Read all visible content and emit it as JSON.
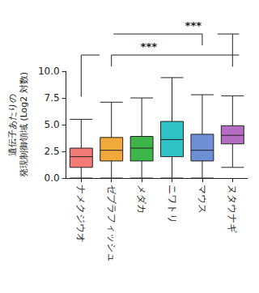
{
  "chart_data": {
    "type": "boxplot",
    "y_label": "遺伝子あたりの\n発現制御領域 (Log2 対数)",
    "categories": [
      "ナメクジウオ",
      "ゼブラフィッシュ",
      "メダカ",
      "ニワトリ",
      "マウス",
      "ヌタウナギ"
    ],
    "series": [
      {
        "min": [
          0,
          0,
          0,
          0,
          0,
          1.0
        ],
        "q1": [
          1.0,
          1.6,
          1.6,
          2.0,
          1.6,
          3.2
        ],
        "median": [
          2.0,
          2.6,
          2.8,
          3.6,
          2.6,
          4.0
        ],
        "q3": [
          2.8,
          3.8,
          3.9,
          5.3,
          4.1,
          4.9
        ],
        "max": [
          5.5,
          7.1,
          7.5,
          9.4,
          7.8,
          7.7
        ]
      }
    ],
    "colors": [
      "#f47a78",
      "#f2a93b",
      "#3db54a",
      "#2fc3c6",
      "#6f8fd4",
      "#b56dc4"
    ],
    "ylim": [
      0,
      10
    ],
    "yticks": [
      {
        "value": 0,
        "label": "0.0"
      },
      {
        "value": 2.5,
        "label": "2.5"
      },
      {
        "value": 5,
        "label": "5.0"
      },
      {
        "value": 7.5,
        "label": "7.5"
      },
      {
        "value": 10,
        "label": "10.0"
      }
    ],
    "annotations": [
      "***",
      "***"
    ],
    "grid": false
  }
}
